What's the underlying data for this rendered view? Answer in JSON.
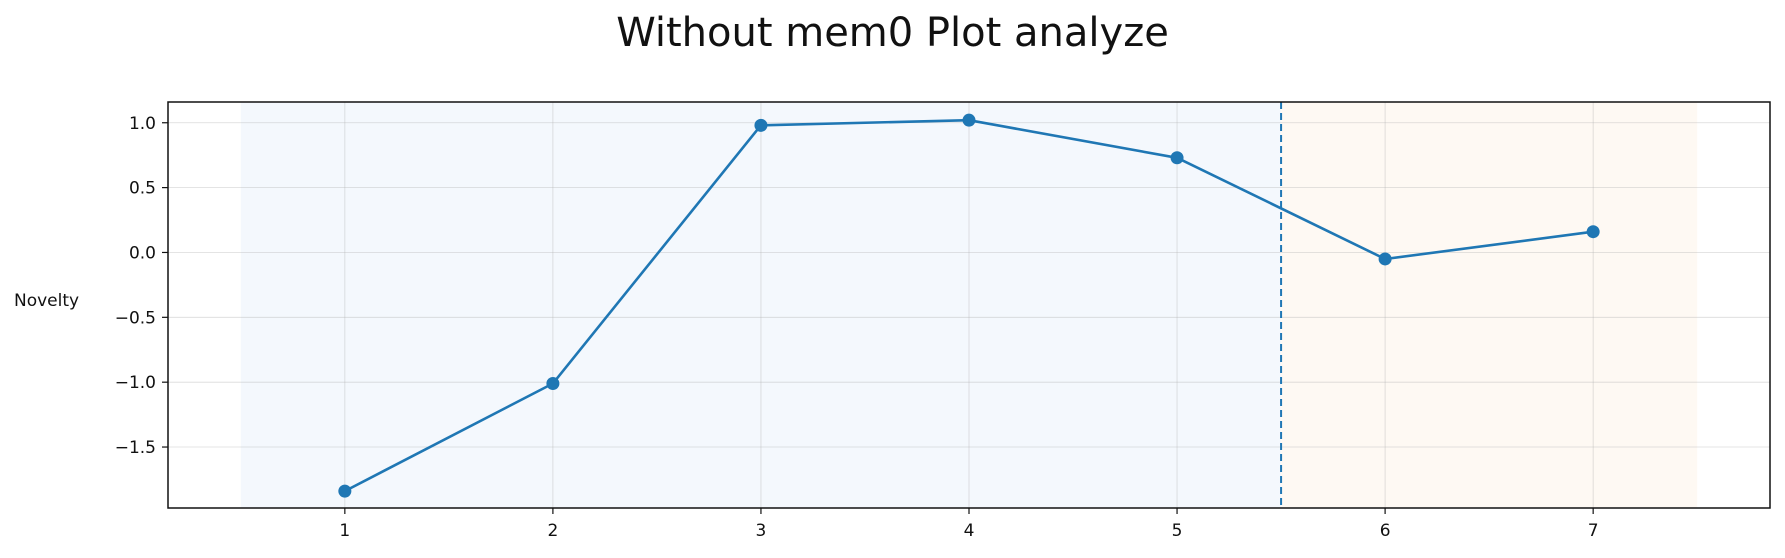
{
  "chart_data": {
    "type": "line",
    "title": "Without mem0 Plot analyze",
    "xlabel": "",
    "ylabel": "Novelty",
    "x": [
      1,
      2,
      3,
      4,
      5,
      6,
      7
    ],
    "series": [
      {
        "values": [
          -1.84,
          -1.01,
          0.98,
          1.02,
          0.73,
          -0.05,
          0.16
        ],
        "color": "#1f77b4",
        "marker": "circle"
      }
    ],
    "xlim": [
      0.15,
      7.85
    ],
    "ylim": [
      -1.97,
      1.16
    ],
    "xticks": [
      1,
      2,
      3,
      4,
      5,
      6,
      7
    ],
    "xtick_labels": [
      "1",
      "2",
      "3",
      "4",
      "5",
      "6",
      "7"
    ],
    "yticks": [
      1.0,
      0.5,
      0.0,
      -0.5,
      -1.0,
      -1.5
    ],
    "ytick_labels": [
      "1.0",
      "0.5",
      "0.0",
      "−0.5",
      "−1.0",
      "−1.5"
    ],
    "shaded_regions": [
      {
        "from": 0.5,
        "to": 5.5,
        "color": "#f4f8fd"
      },
      {
        "from": 5.5,
        "to": 7.5,
        "color": "#fef9f3"
      }
    ],
    "vline": {
      "x": 5.5,
      "style": "dashed",
      "color": "#1f77b4"
    },
    "grid": true,
    "legend": "none"
  }
}
